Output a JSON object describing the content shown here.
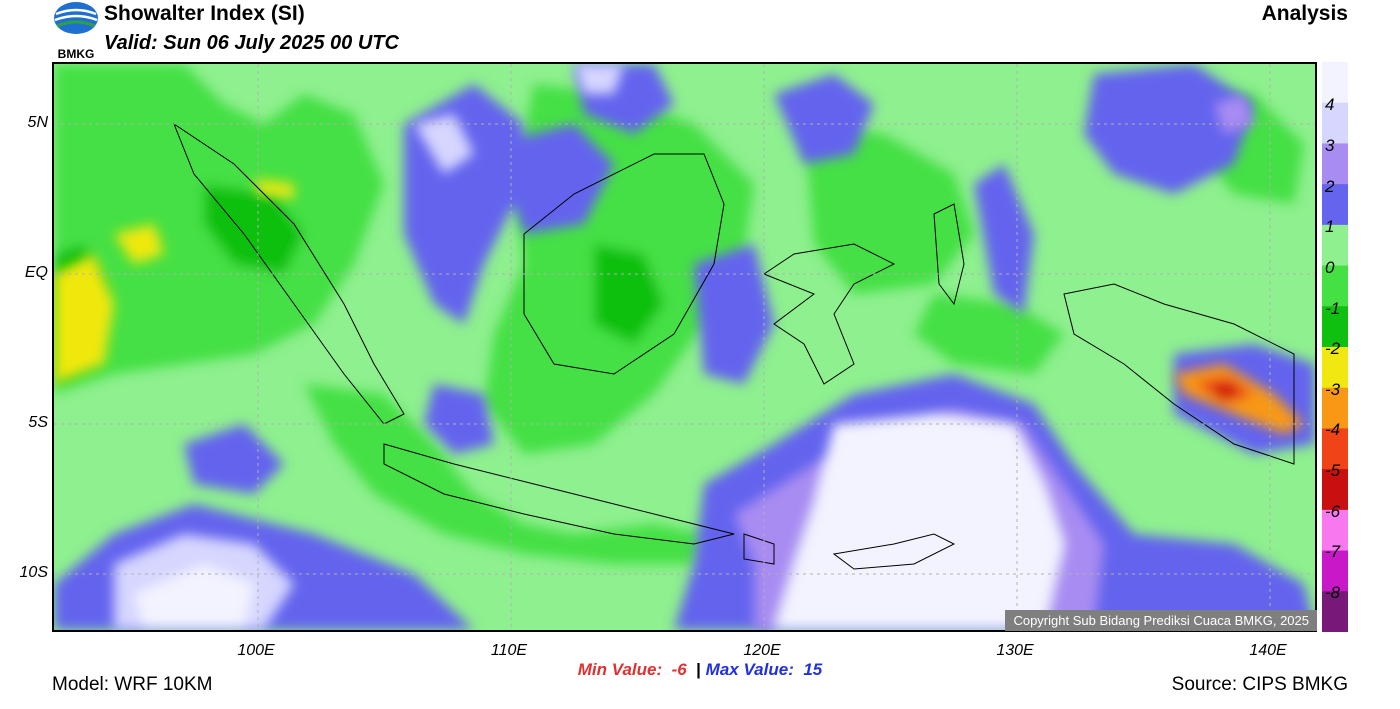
{
  "header": {
    "title": "Showalter Index (SI)",
    "valid": "Valid: Sun 06 July 2025 00 UTC",
    "run_type": "Analysis",
    "logo_text": "BMKG"
  },
  "map": {
    "lat_labels": [
      "5N",
      "EQ",
      "5S",
      "10S"
    ],
    "lon_labels": [
      "100E",
      "110E",
      "120E",
      "130E",
      "140E"
    ],
    "copyright": "Copyright Sub Bidang Prediksi Cuaca BMKG, 2025"
  },
  "colorbar": {
    "labels": [
      "4",
      "3",
      "2",
      "1",
      "0",
      "-1",
      "-2",
      "-3",
      "-4",
      "-5",
      "-6",
      "-7",
      "-8"
    ],
    "colors": [
      "#f3f3ff",
      "#d6d6ff",
      "#a88cf2",
      "#6464ee",
      "#8ef08e",
      "#44e044",
      "#10c010",
      "#f0e810",
      "#f89814",
      "#f04418",
      "#c81010",
      "#f878f0",
      "#c818c8",
      "#781878"
    ]
  },
  "stats": {
    "min_label": "Min Value:",
    "min_value": "-6",
    "separator": "|",
    "max_label": "Max Value:",
    "max_value": "15"
  },
  "footer": {
    "model": "Model: WRF 10KM",
    "source": "Source: CIPS BMKG"
  }
}
